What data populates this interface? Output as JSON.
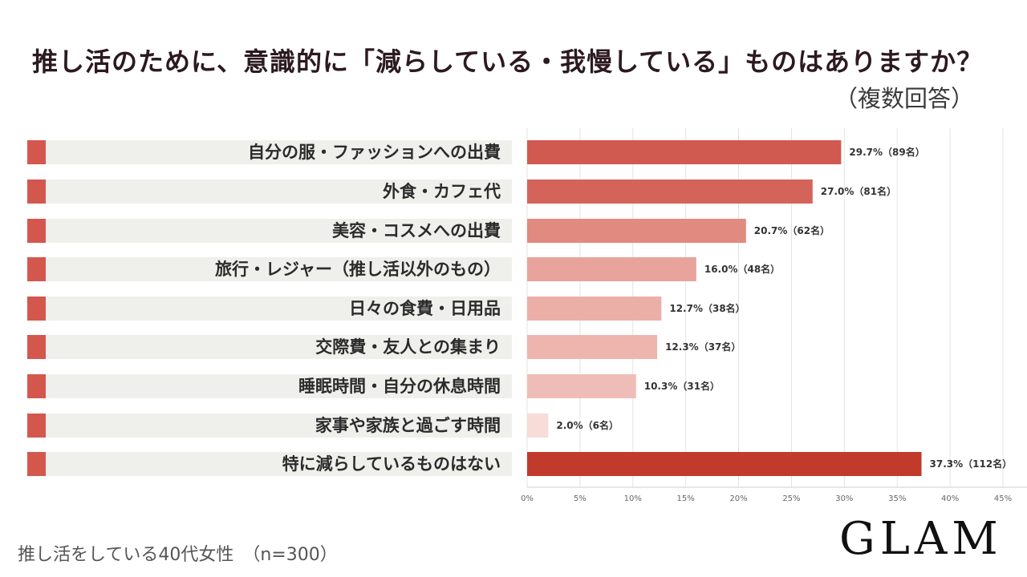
{
  "header": {
    "title": "推し活のために、意識的に「減らしている・我慢している」ものはありますか？",
    "subtitle": "（複数回答）"
  },
  "footer": {
    "note": "推し活をしている40代女性　（n=300）",
    "logo": "GLAM"
  },
  "colors": {
    "swatch": "#d4574e",
    "label_bg": "#efefec",
    "bars": [
      "#d05a50",
      "#d4645a",
      "#e08a80",
      "#e8a49c",
      "#ebafa8",
      "#edb5ae",
      "#efbdb7",
      "#f7dcd8",
      "#c23a2c"
    ]
  },
  "chart_data": {
    "type": "bar",
    "orientation": "horizontal",
    "title": "推し活のために、意識的に「減らしている・我慢している」ものはありますか？",
    "categories": [
      "自分の服・ファッションへの出費",
      "外食・カフェ代",
      "美容・コスメへの出費",
      "旅行・レジャー（推し活以外のもの）",
      "日々の食費・日用品",
      "交際費・友人との集まり",
      "睡眠時間・自分の休息時間",
      "家事や家族と過ごす時間",
      "特に減らしているものはない"
    ],
    "values": [
      29.7,
      27.0,
      20.7,
      16.0,
      12.7,
      12.3,
      10.3,
      2.0,
      37.3
    ],
    "data_labels": [
      "29.7%（89名）",
      "27.0%（81名）",
      "20.7%（62名）",
      "16.0%（48名）",
      "12.7%（38名）",
      "12.3%（37名）",
      "10.3%（31名）",
      "2.0%（6名）",
      "37.3%（112名）"
    ],
    "xlim": [
      0,
      45
    ],
    "x_ticks": [
      "0%",
      "5%",
      "10%",
      "15%",
      "20%",
      "25%",
      "30%",
      "35%",
      "40%",
      "45%"
    ],
    "grid": true,
    "legend": "none"
  }
}
